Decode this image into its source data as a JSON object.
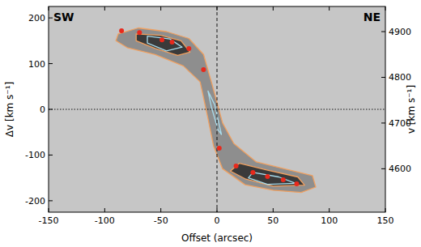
{
  "chart_data": {
    "type": "scatter",
    "x_label": "Offset (arcsec)",
    "y_label": "Δv [km s⁻¹]",
    "y2_label": "v [km s⁻¹]",
    "annotations": [
      "SW",
      "NE"
    ],
    "xlim": [
      -150,
      150
    ],
    "xticks": [
      -150,
      -100,
      -50,
      0,
      50,
      100,
      150
    ],
    "ylim": [
      -225,
      225
    ],
    "yticks": [
      -200,
      -100,
      0,
      100,
      200
    ],
    "y2lim": [
      4505,
      4955
    ],
    "y2ticks": [
      4600,
      4700,
      4800,
      4900
    ],
    "x": [
      -85,
      -69,
      -49,
      -40,
      -25,
      -12,
      2,
      17,
      32,
      45,
      59,
      71
    ],
    "values": [
      172,
      168,
      152,
      147,
      133,
      87,
      -85,
      -124,
      -138,
      -147,
      -154,
      -163
    ],
    "color": "#e8291c",
    "marker": "circle",
    "lines": [
      {
        "axis": "x",
        "value": 0,
        "line_style": "dashed"
      },
      {
        "axis": "y",
        "value": 0,
        "line_style": "dotted"
      }
    ],
    "contours": [
      {
        "color": "#f0a060",
        "points": [
          [
            -90,
            150
          ],
          [
            -88,
            165
          ],
          [
            -70,
            178
          ],
          [
            -45,
            170
          ],
          [
            -25,
            155
          ],
          [
            -12,
            120
          ],
          [
            -5,
            60
          ],
          [
            5,
            -30
          ],
          [
            15,
            -75
          ],
          [
            35,
            -115
          ],
          [
            60,
            -130
          ],
          [
            85,
            -145
          ],
          [
            88,
            -170
          ],
          [
            75,
            -182
          ],
          [
            50,
            -177
          ],
          [
            25,
            -165
          ],
          [
            5,
            -130
          ],
          [
            -3,
            -80
          ],
          [
            -8,
            -20
          ],
          [
            -15,
            60
          ],
          [
            -30,
            95
          ],
          [
            -55,
            120
          ],
          [
            -80,
            135
          ]
        ]
      },
      {
        "color": "#f0a060",
        "points": [
          [
            -72,
            165
          ],
          [
            -50,
            162
          ],
          [
            -32,
            150
          ],
          [
            -24,
            125
          ],
          [
            -35,
            118
          ],
          [
            -55,
            133
          ],
          [
            -72,
            150
          ]
        ]
      },
      {
        "color": "#f0a060",
        "points": [
          [
            12,
            -135
          ],
          [
            20,
            -118
          ],
          [
            45,
            -133
          ],
          [
            72,
            -148
          ],
          [
            78,
            -166
          ],
          [
            50,
            -168
          ],
          [
            25,
            -152
          ]
        ]
      },
      {
        "color": "#a8dcec",
        "points": [
          [
            -62,
            160
          ],
          [
            -42,
            154
          ],
          [
            -31,
            136
          ],
          [
            -45,
            128
          ],
          [
            -62,
            145
          ]
        ]
      },
      {
        "color": "#a8dcec",
        "points": [
          [
            28,
            -150
          ],
          [
            32,
            -138
          ],
          [
            55,
            -148
          ],
          [
            70,
            -162
          ],
          [
            45,
            -164
          ]
        ]
      },
      {
        "color": "#a8dcec",
        "points": [
          [
            -8,
            40
          ],
          [
            -2,
            10
          ],
          [
            4,
            -55
          ],
          [
            1,
            -45
          ],
          [
            -5,
            5
          ]
        ]
      }
    ]
  }
}
